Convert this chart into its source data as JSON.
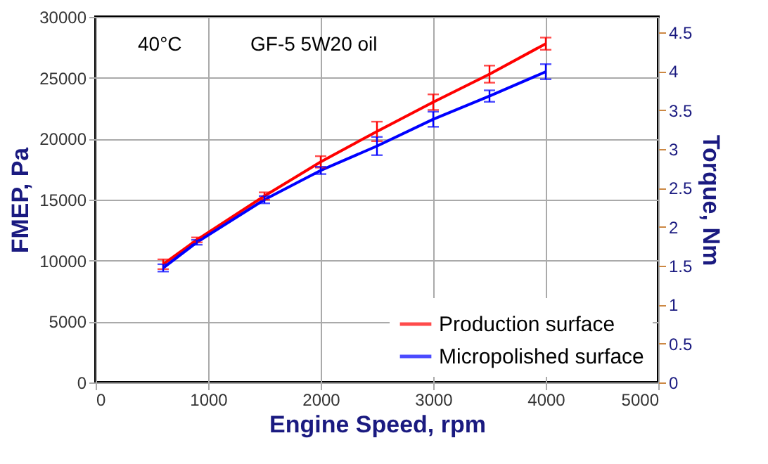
{
  "chart_data": {
    "type": "line",
    "x": [
      600,
      900,
      1500,
      2000,
      2500,
      3000,
      3500,
      4000
    ],
    "series": [
      {
        "name": "Production surface",
        "color": "#ff0000",
        "values": [
          9700,
          11700,
          15300,
          18100,
          20600,
          23000,
          25300,
          27800
        ],
        "errors": [
          400,
          200,
          300,
          470,
          800,
          640,
          700,
          500
        ]
      },
      {
        "name": "Micropolished surface",
        "color": "#0000ff",
        "values": [
          9400,
          11500,
          15000,
          17400,
          19400,
          21600,
          23500,
          25500
        ],
        "errors": [
          300,
          200,
          300,
          300,
          750,
          620,
          470,
          620
        ]
      }
    ],
    "xlabel": "Engine Speed, rpm",
    "ylabel": "FMEP, Pa",
    "y2label": "Torque, Nm",
    "xlim": [
      0,
      5000
    ],
    "xticks": [
      0,
      1000,
      2000,
      3000,
      4000,
      5000
    ],
    "ylim": [
      0,
      30000
    ],
    "yticks": [
      0,
      5000,
      10000,
      15000,
      20000,
      25000,
      30000
    ],
    "y2lim": [
      0,
      4.7
    ],
    "y2ticks": [
      0,
      0.5,
      1,
      1.5,
      2,
      2.5,
      3,
      3.5,
      4,
      4.5
    ],
    "annotations": [
      "40°C",
      "GF-5 5W20 oil"
    ],
    "grid": true,
    "legend": "bottom right",
    "marker": "none",
    "line_style": "solid"
  }
}
